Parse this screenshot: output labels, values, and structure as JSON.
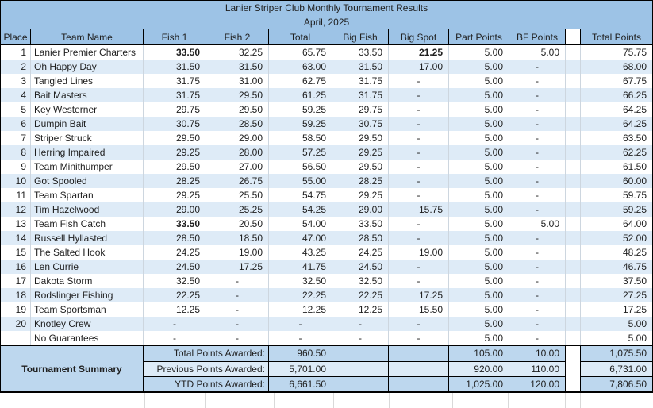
{
  "title": "Lanier Striper Club Monthly Tournament Results",
  "subtitle": "April, 2025",
  "columns": [
    "Place",
    "Team Name",
    "Fish 1",
    "Fish 2",
    "Total",
    "Big Fish",
    "Big Spot",
    "Part Points",
    "BF Points",
    "",
    "Total Points"
  ],
  "rows": [
    {
      "place": "1",
      "team": "Lanier Premier Charters",
      "fish1": "33.50",
      "fish2": "32.25",
      "total": "65.75",
      "big_fish": "33.50",
      "big_spot": "21.25",
      "part_points": "5.00",
      "bf_points": "5.00",
      "total_points": "75.75",
      "bold": [
        "fish1",
        "big_spot"
      ]
    },
    {
      "place": "2",
      "team": "Oh Happy Day",
      "fish1": "31.50",
      "fish2": "31.50",
      "total": "63.00",
      "big_fish": "31.50",
      "big_spot": "17.00",
      "part_points": "5.00",
      "bf_points": "-",
      "total_points": "68.00"
    },
    {
      "place": "3",
      "team": "Tangled Lines",
      "fish1": "31.75",
      "fish2": "31.00",
      "total": "62.75",
      "big_fish": "31.75",
      "big_spot": "-",
      "part_points": "5.00",
      "bf_points": "-",
      "total_points": "67.75"
    },
    {
      "place": "4",
      "team": "Bait Masters",
      "fish1": "31.75",
      "fish2": "29.50",
      "total": "61.25",
      "big_fish": "31.75",
      "big_spot": "-",
      "part_points": "5.00",
      "bf_points": "-",
      "total_points": "66.25"
    },
    {
      "place": "5",
      "team": "Key Westerner",
      "fish1": "29.75",
      "fish2": "29.50",
      "total": "59.25",
      "big_fish": "29.75",
      "big_spot": "-",
      "part_points": "5.00",
      "bf_points": "-",
      "total_points": "64.25"
    },
    {
      "place": "6",
      "team": "Dumpin Bait",
      "fish1": "30.75",
      "fish2": "28.50",
      "total": "59.25",
      "big_fish": "30.75",
      "big_spot": "-",
      "part_points": "5.00",
      "bf_points": "-",
      "total_points": "64.25"
    },
    {
      "place": "7",
      "team": "Striper Struck",
      "fish1": "29.50",
      "fish2": "29.00",
      "total": "58.50",
      "big_fish": "29.50",
      "big_spot": "-",
      "part_points": "5.00",
      "bf_points": "-",
      "total_points": "63.50"
    },
    {
      "place": "8",
      "team": "Herring Impaired",
      "fish1": "29.25",
      "fish2": "28.00",
      "total": "57.25",
      "big_fish": "29.25",
      "big_spot": "-",
      "part_points": "5.00",
      "bf_points": "-",
      "total_points": "62.25"
    },
    {
      "place": "9",
      "team": "Team Minithumper",
      "fish1": "29.50",
      "fish2": "27.00",
      "total": "56.50",
      "big_fish": "29.50",
      "big_spot": "-",
      "part_points": "5.00",
      "bf_points": "-",
      "total_points": "61.50"
    },
    {
      "place": "10",
      "team": "Got Spooled",
      "fish1": "28.25",
      "fish2": "26.75",
      "total": "55.00",
      "big_fish": "28.25",
      "big_spot": "-",
      "part_points": "5.00",
      "bf_points": "-",
      "total_points": "60.00"
    },
    {
      "place": "11",
      "team": "Team Spartan",
      "fish1": "29.25",
      "fish2": "25.50",
      "total": "54.75",
      "big_fish": "29.25",
      "big_spot": "-",
      "part_points": "5.00",
      "bf_points": "-",
      "total_points": "59.75"
    },
    {
      "place": "12",
      "team": "Tim Hazelwood",
      "fish1": "29.00",
      "fish2": "25.25",
      "total": "54.25",
      "big_fish": "29.00",
      "big_spot": "15.75",
      "part_points": "5.00",
      "bf_points": "-",
      "total_points": "59.25"
    },
    {
      "place": "13",
      "team": "Team Fish Catch",
      "fish1": "33.50",
      "fish2": "20.50",
      "total": "54.00",
      "big_fish": "33.50",
      "big_spot": "-",
      "part_points": "5.00",
      "bf_points": "5.00",
      "total_points": "64.00",
      "bold": [
        "fish1"
      ]
    },
    {
      "place": "14",
      "team": "Russell Hyllasted",
      "fish1": "28.50",
      "fish2": "18.50",
      "total": "47.00",
      "big_fish": "28.50",
      "big_spot": "-",
      "part_points": "5.00",
      "bf_points": "-",
      "total_points": "52.00"
    },
    {
      "place": "15",
      "team": "The Salted Hook",
      "fish1": "24.25",
      "fish2": "19.00",
      "total": "43.25",
      "big_fish": "24.25",
      "big_spot": "19.00",
      "part_points": "5.00",
      "bf_points": "-",
      "total_points": "48.25"
    },
    {
      "place": "16",
      "team": "Len Currie",
      "fish1": "24.50",
      "fish2": "17.25",
      "total": "41.75",
      "big_fish": "24.50",
      "big_spot": "-",
      "part_points": "5.00",
      "bf_points": "-",
      "total_points": "46.75"
    },
    {
      "place": "17",
      "team": "Dakota Storm",
      "fish1": "32.50",
      "fish2": "-",
      "total": "32.50",
      "big_fish": "32.50",
      "big_spot": "-",
      "part_points": "5.00",
      "bf_points": "-",
      "total_points": "37.50"
    },
    {
      "place": "18",
      "team": "Rodslinger Fishing",
      "fish1": "22.25",
      "fish2": "-",
      "total": "22.25",
      "big_fish": "22.25",
      "big_spot": "17.25",
      "part_points": "5.00",
      "bf_points": "-",
      "total_points": "27.25"
    },
    {
      "place": "19",
      "team": "Team Sportsman",
      "fish1": "12.25",
      "fish2": "-",
      "total": "12.25",
      "big_fish": "12.25",
      "big_spot": "15.50",
      "part_points": "5.00",
      "bf_points": "-",
      "total_points": "17.25"
    },
    {
      "place": "20",
      "team": "Knotley Crew",
      "fish1": "-",
      "fish2": "-",
      "total": "-",
      "big_fish": "-",
      "big_spot": "-",
      "part_points": "5.00",
      "bf_points": "-",
      "total_points": "5.00"
    },
    {
      "place": "",
      "team": "No Guarantees",
      "fish1": "-",
      "fish2": "-",
      "total": "-",
      "big_fish": "-",
      "big_spot": "-",
      "part_points": "5.00",
      "bf_points": "-",
      "total_points": "5.00"
    }
  ],
  "summary": {
    "label": "Tournament Summary",
    "rows": [
      {
        "label": "Total Points Awarded:",
        "total": "960.50",
        "part_points": "105.00",
        "bf_points": "10.00",
        "total_points": "1,075.50"
      },
      {
        "label": "Previous Points Awarded:",
        "total": "5,701.00",
        "part_points": "920.00",
        "bf_points": "110.00",
        "total_points": "6,731.00"
      },
      {
        "label": "YTD Points Awarded:",
        "total": "6,661.50",
        "part_points": "1,025.00",
        "bf_points": "120.00",
        "total_points": "7,806.50"
      }
    ]
  },
  "colors": {
    "header_fill": "#9DC3E6",
    "band_fill": "#DEEBF7",
    "summary_fill": "#BDD7EE",
    "summary_alt_fill": "#DDEBF7",
    "grid_line": "#CDD6DF",
    "border": "#000000",
    "text": "#1F1F1F"
  }
}
